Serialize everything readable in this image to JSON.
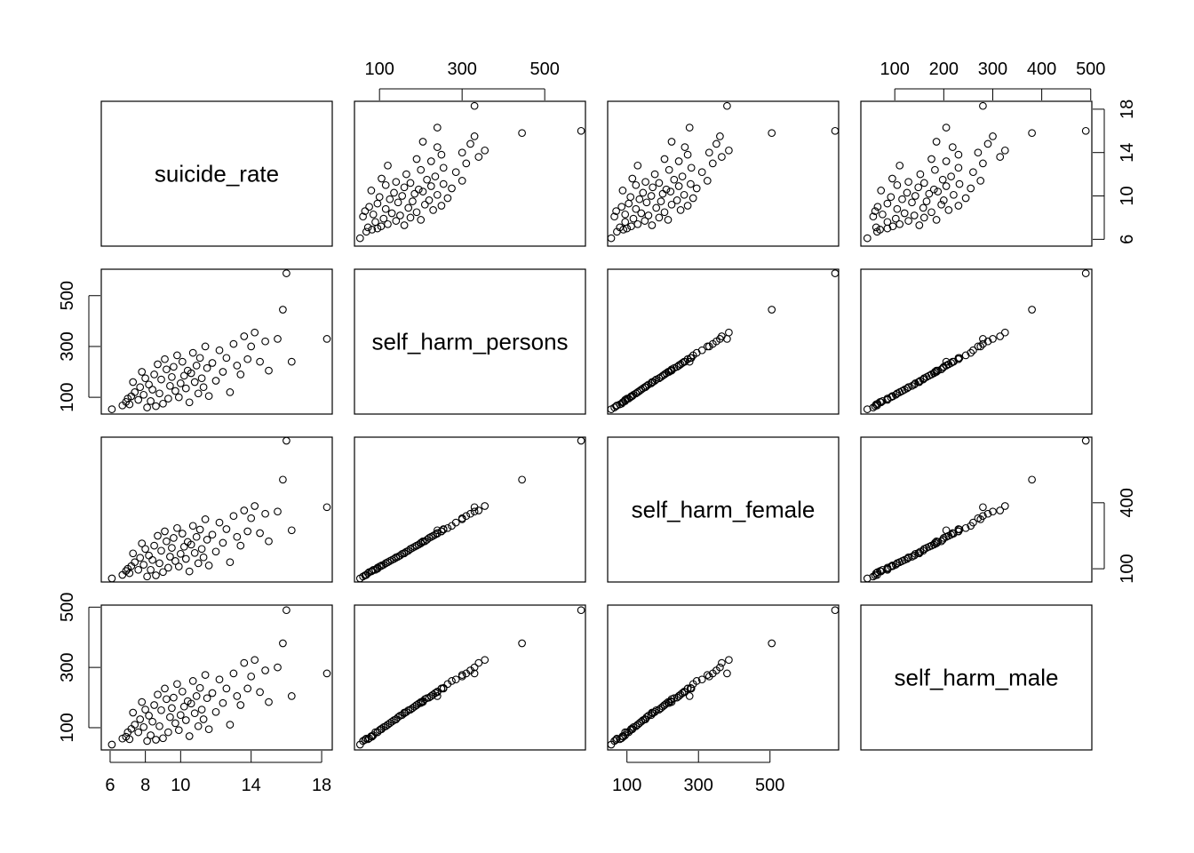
{
  "chart_data": {
    "type": "scatter",
    "title": "",
    "variables": [
      {
        "name": "suicide_rate",
        "range": [
          5.7,
          18.4
        ],
        "ticks": [
          6,
          8,
          10,
          14,
          18
        ],
        "ticks_left": [
          6,
          8,
          10,
          14,
          18
        ]
      },
      {
        "name": "self_harm_persons",
        "range": [
          48,
          590
        ],
        "ticks": [
          100,
          300,
          500
        ],
        "ticks_left": [
          100,
          300,
          500
        ]
      },
      {
        "name": "self_harm_female",
        "range": [
          56,
          682
        ],
        "ticks": [
          100,
          300,
          500
        ],
        "ticks_left": [
          100,
          400
        ]
      },
      {
        "name": "self_harm_male",
        "range": [
          38,
          495
        ],
        "ticks": [
          100,
          200,
          300,
          400,
          500
        ],
        "ticks_left": [
          100,
          300,
          500
        ]
      }
    ],
    "tick_labels": {
      "top_col2": [
        "100",
        "300",
        "500"
      ],
      "top_col4": [
        "100",
        "200",
        "300",
        "400",
        "500"
      ],
      "bottom_col1": [
        "6",
        "8",
        "10",
        "14",
        "18"
      ],
      "bottom_col3": [
        "100",
        "300",
        "500"
      ],
      "left_row2": [
        "100",
        "300",
        "500"
      ],
      "left_row4": [
        "100",
        "300",
        "500"
      ],
      "right_row1": [
        "6",
        "10",
        "14",
        "18"
      ],
      "right_row3": [
        "100",
        "400"
      ]
    },
    "observations": [
      [
        6.1,
        53,
        56,
        44
      ],
      [
        6.7,
        68,
        72,
        64
      ],
      [
        6.9,
        82,
        90,
        70
      ],
      [
        7.0,
        95,
        100,
        85
      ],
      [
        7.1,
        72,
        80,
        62
      ],
      [
        7.2,
        104,
        112,
        96
      ],
      [
        7.3,
        160,
        170,
        150
      ],
      [
        7.4,
        120,
        130,
        110
      ],
      [
        7.6,
        90,
        95,
        85
      ],
      [
        7.7,
        140,
        150,
        128
      ],
      [
        7.8,
        200,
        215,
        185
      ],
      [
        7.9,
        110,
        118,
        102
      ],
      [
        8.0,
        175,
        190,
        160
      ],
      [
        8.1,
        60,
        65,
        56
      ],
      [
        8.2,
        150,
        160,
        140
      ],
      [
        8.3,
        85,
        95,
        75
      ],
      [
        8.4,
        130,
        140,
        120
      ],
      [
        8.5,
        190,
        205,
        175
      ],
      [
        8.6,
        65,
        70,
        60
      ],
      [
        8.7,
        230,
        250,
        210
      ],
      [
        8.8,
        115,
        125,
        105
      ],
      [
        8.9,
        170,
        182,
        158
      ],
      [
        9.0,
        75,
        85,
        65
      ],
      [
        9.1,
        250,
        270,
        230
      ],
      [
        9.2,
        210,
        225,
        195
      ],
      [
        9.3,
        95,
        105,
        85
      ],
      [
        9.4,
        145,
        155,
        135
      ],
      [
        9.5,
        180,
        195,
        165
      ],
      [
        9.6,
        220,
        240,
        200
      ],
      [
        9.7,
        125,
        135,
        115
      ],
      [
        9.8,
        265,
        285,
        245
      ],
      [
        9.9,
        100,
        110,
        92
      ],
      [
        10.0,
        155,
        168,
        142
      ],
      [
        10.1,
        240,
        260,
        220
      ],
      [
        10.2,
        185,
        200,
        170
      ],
      [
        10.3,
        135,
        145,
        125
      ],
      [
        10.4,
        205,
        222,
        188
      ],
      [
        10.5,
        80,
        88,
        72
      ],
      [
        10.6,
        195,
        210,
        180
      ],
      [
        10.7,
        275,
        295,
        255
      ],
      [
        10.8,
        160,
        172,
        148
      ],
      [
        10.9,
        225,
        245,
        205
      ],
      [
        11.0,
        115,
        125,
        105
      ],
      [
        11.1,
        255,
        278,
        232
      ],
      [
        11.2,
        175,
        190,
        160
      ],
      [
        11.3,
        140,
        152,
        128
      ],
      [
        11.4,
        300,
        325,
        275
      ],
      [
        11.5,
        215,
        232,
        198
      ],
      [
        11.6,
        105,
        115,
        95
      ],
      [
        11.8,
        235,
        255,
        215
      ],
      [
        12.0,
        165,
        178,
        152
      ],
      [
        12.2,
        285,
        310,
        260
      ],
      [
        12.4,
        200,
        218,
        182
      ],
      [
        12.6,
        255,
        280,
        230
      ],
      [
        12.8,
        120,
        130,
        110
      ],
      [
        13.0,
        310,
        340,
        280
      ],
      [
        13.2,
        225,
        245,
        205
      ],
      [
        13.4,
        190,
        205,
        175
      ],
      [
        13.6,
        340,
        365,
        315
      ],
      [
        13.8,
        250,
        270,
        230
      ],
      [
        14.0,
        300,
        330,
        270
      ],
      [
        14.2,
        355,
        385,
        325
      ],
      [
        14.5,
        240,
        262,
        218
      ],
      [
        14.8,
        320,
        350,
        290
      ],
      [
        15.0,
        205,
        225,
        185
      ],
      [
        15.5,
        330,
        360,
        300
      ],
      [
        15.8,
        445,
        505,
        380
      ],
      [
        16.0,
        588,
        682,
        490
      ],
      [
        16.3,
        240,
        275,
        205
      ],
      [
        18.3,
        330,
        380,
        280
      ]
    ]
  }
}
